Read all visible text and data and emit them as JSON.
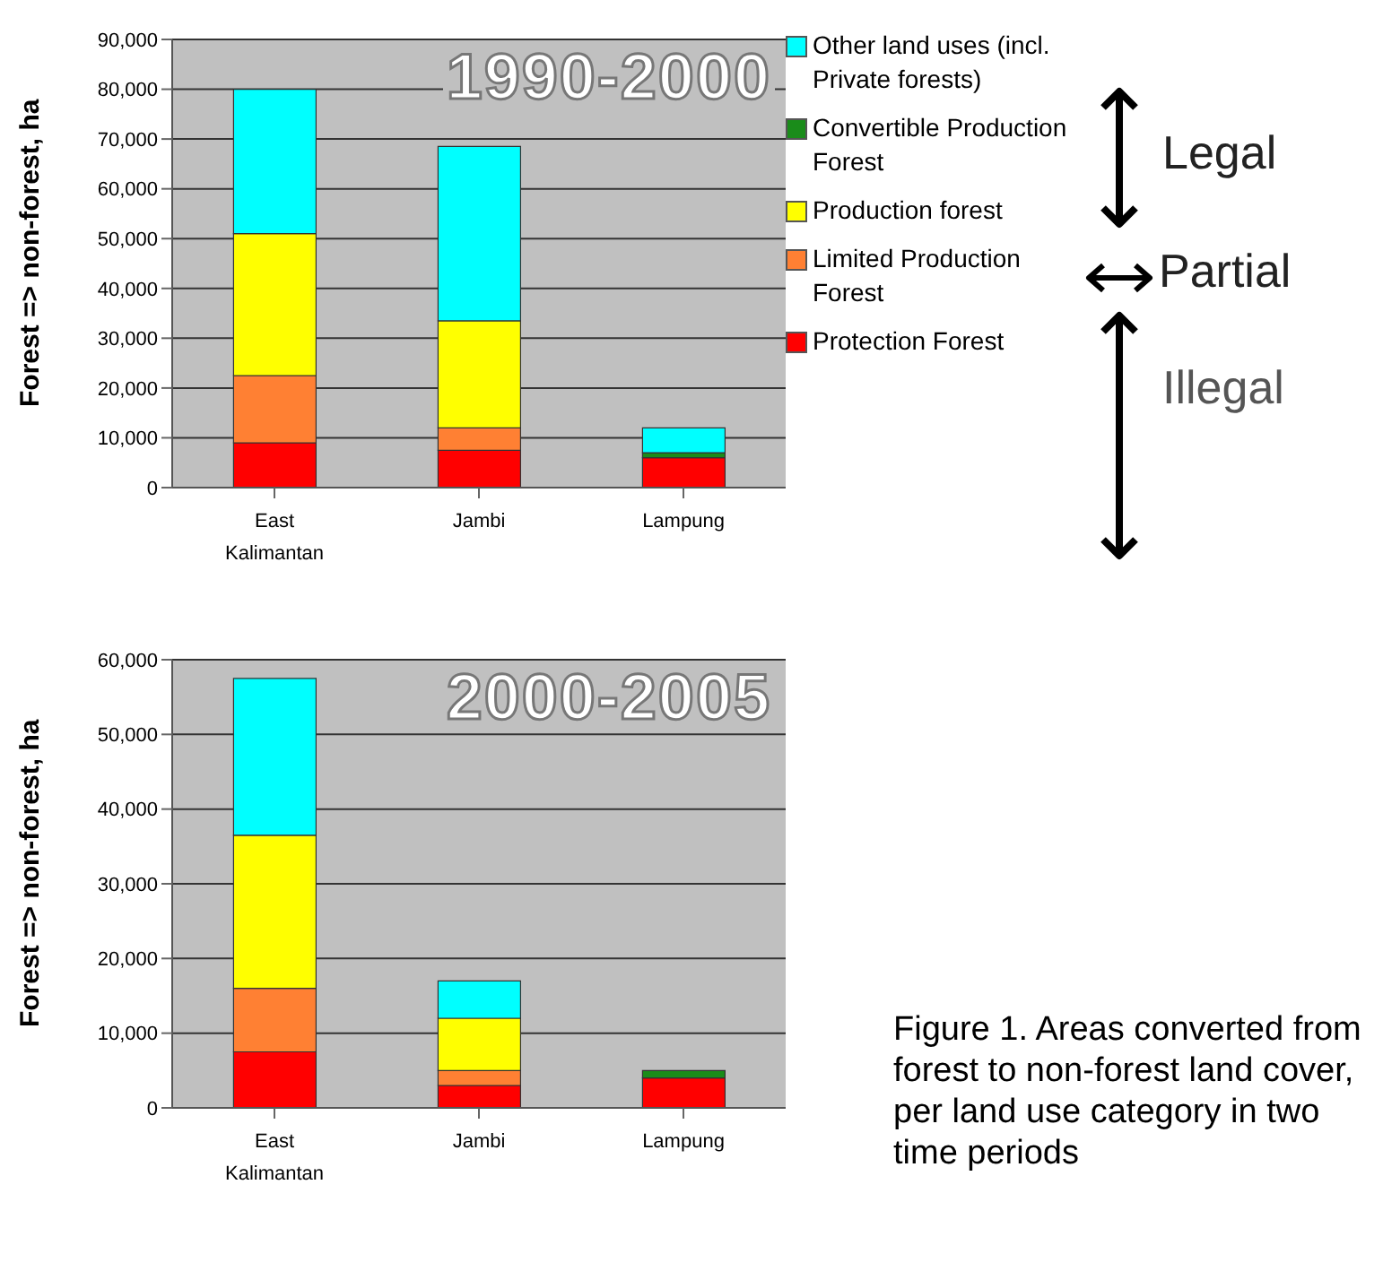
{
  "chart_data": [
    {
      "type": "bar",
      "title": "1990-2000",
      "ylabel": "Forest => non-forest, ha",
      "categories": [
        "East Kalimantan",
        "Jambi",
        "Lampung"
      ],
      "stacked": true,
      "ylim": [
        0,
        90000
      ],
      "yticks": [
        {
          "value": 0,
          "label": "0"
        },
        {
          "value": 10000,
          "label": "10,000"
        },
        {
          "value": 20000,
          "label": "20,000"
        },
        {
          "value": 30000,
          "label": "30,000"
        },
        {
          "value": 40000,
          "label": "40,000"
        },
        {
          "value": 50000,
          "label": "50,000"
        },
        {
          "value": 60000,
          "label": "60,000"
        },
        {
          "value": 70000,
          "label": "70,000"
        },
        {
          "value": 80000,
          "label": "80,000"
        },
        {
          "value": 90000,
          "label": "90,000"
        }
      ],
      "grid": "y",
      "legend": "right",
      "series": [
        {
          "name": "Protection Forest",
          "color": "#ff0000",
          "values": [
            9000,
            7500,
            6000
          ]
        },
        {
          "name": "Limited Production Forest",
          "color": "#ff8033",
          "values": [
            13500,
            4500,
            0
          ]
        },
        {
          "name": "Production forest",
          "color": "#ffff00",
          "values": [
            28500,
            21500,
            0
          ]
        },
        {
          "name": "Convertible Production Forest",
          "color": "#1a8c1a",
          "values": [
            0,
            0,
            1000
          ]
        },
        {
          "name": "Other land uses (incl. Private forests)",
          "color": "#00ffff",
          "values": [
            29000,
            35000,
            5000
          ]
        }
      ],
      "annotations": [
        "Legal",
        "Partial",
        "Illegal"
      ]
    },
    {
      "type": "bar",
      "title": "2000-2005",
      "ylabel": "Forest => non-forest, ha",
      "categories": [
        "East Kalimantan",
        "Jambi",
        "Lampung"
      ],
      "stacked": true,
      "ylim": [
        0,
        60000
      ],
      "yticks": [
        {
          "value": 0,
          "label": "0"
        },
        {
          "value": 10000,
          "label": "10,000"
        },
        {
          "value": 20000,
          "label": "20,000"
        },
        {
          "value": 30000,
          "label": "30,000"
        },
        {
          "value": 40000,
          "label": "40,000"
        },
        {
          "value": 50000,
          "label": "50,000"
        },
        {
          "value": 60000,
          "label": "60,000"
        }
      ],
      "grid": "y",
      "series": [
        {
          "color": "#ff0000",
          "values": [
            7500,
            3000,
            4000
          ]
        },
        {
          "color": "#ff8033",
          "values": [
            8500,
            2000,
            0
          ]
        },
        {
          "color": "#ffff00",
          "values": [
            20500,
            7000,
            0
          ]
        },
        {
          "color": "#1a8c1a",
          "values": [
            0,
            0,
            1000
          ]
        },
        {
          "color": "#00ffff",
          "values": [
            21000,
            5000,
            0
          ]
        }
      ],
      "annotations": [
        "Figure 1. Areas converted from forest to non-forest land cover, per land use category in two time periods"
      ]
    }
  ]
}
